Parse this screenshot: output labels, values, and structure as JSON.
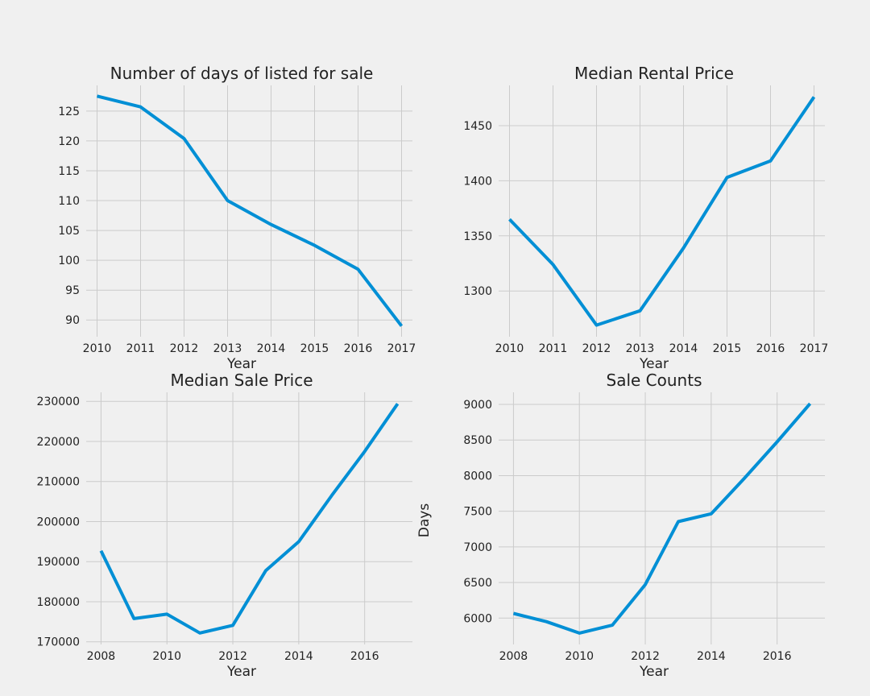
{
  "colors": {
    "background": "#f0f0f0",
    "grid": "#cbcbcb",
    "line": "#008fd5",
    "text": "#222222"
  },
  "chart_data": [
    {
      "type": "line",
      "title": "Number of days of listed for sale",
      "xlabel": "Year",
      "ylabel": "",
      "x": [
        2010,
        2011,
        2012,
        2013,
        2014,
        2015,
        2016,
        2017
      ],
      "y": [
        127.5,
        125.7,
        120.4,
        110.0,
        106.0,
        102.5,
        98.5,
        89.0
      ],
      "xlim": [
        2009.75,
        2017.25
      ],
      "ylim": [
        87.2,
        129.3
      ],
      "xticks": [
        2010,
        2011,
        2012,
        2013,
        2014,
        2015,
        2016,
        2017
      ],
      "yticks": [
        90,
        95,
        100,
        105,
        110,
        115,
        120,
        125
      ],
      "grid": true
    },
    {
      "type": "line",
      "title": "Median Rental Price",
      "xlabel": "Year",
      "ylabel": "",
      "x": [
        2010,
        2011,
        2012,
        2013,
        2014,
        2015,
        2016,
        2017
      ],
      "y": [
        1365,
        1324,
        1269,
        1282,
        1339,
        1403,
        1418,
        1476
      ],
      "xlim": [
        2009.75,
        2017.25
      ],
      "ylim": [
        1258.5,
        1486.5
      ],
      "xticks": [
        2010,
        2011,
        2012,
        2013,
        2014,
        2015,
        2016,
        2017
      ],
      "yticks": [
        1300,
        1350,
        1400,
        1450
      ],
      "grid": true
    },
    {
      "type": "line",
      "title": "Median Sale Price",
      "xlabel": "Year",
      "ylabel": "",
      "x": [
        2008,
        2009,
        2010,
        2011,
        2012,
        2013,
        2014,
        2015,
        2016,
        2017
      ],
      "y": [
        192700,
        175800,
        176900,
        172200,
        174100,
        187800,
        195000,
        206500,
        217500,
        229400
      ],
      "xlim": [
        2007.55,
        2017.45
      ],
      "ylim": [
        169340,
        232260
      ],
      "xticks": [
        2008,
        2010,
        2012,
        2014,
        2016
      ],
      "yticks": [
        170000,
        180000,
        190000,
        200000,
        210000,
        220000,
        230000
      ],
      "grid": true
    },
    {
      "type": "line",
      "title": "Sale Counts",
      "xlabel": "Year",
      "ylabel": "Days",
      "x": [
        2008,
        2009,
        2010,
        2011,
        2012,
        2013,
        2014,
        2015,
        2016,
        2017
      ],
      "y": [
        6065,
        5950,
        5790,
        5900,
        6470,
        7355,
        7465,
        7960,
        8475,
        9010
      ],
      "xlim": [
        2007.55,
        2017.45
      ],
      "ylim": [
        5630,
        9170
      ],
      "xticks": [
        2008,
        2010,
        2012,
        2014,
        2016
      ],
      "yticks": [
        6000,
        6500,
        7000,
        7500,
        8000,
        8500,
        9000
      ],
      "grid": true
    }
  ]
}
